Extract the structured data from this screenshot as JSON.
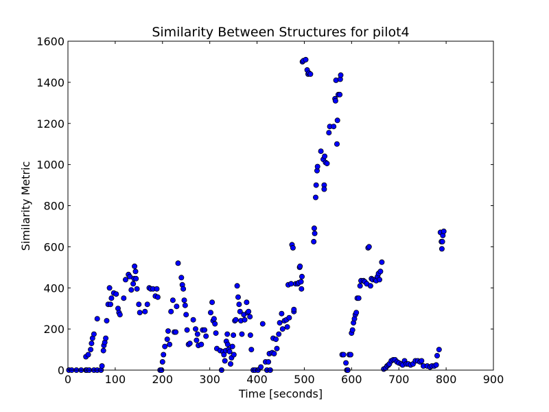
{
  "chart_data": {
    "type": "scatter",
    "title": "Similarity Between Structures for pilot4",
    "xlabel": "Time [seconds]",
    "ylabel": "Similarity Metric",
    "xlim": [
      0,
      900
    ],
    "ylim": [
      0,
      1600
    ],
    "x_ticks": [
      "0",
      "100",
      "200",
      "300",
      "400",
      "500",
      "600",
      "700",
      "800",
      "900"
    ],
    "y_ticks": [
      "0",
      "200",
      "400",
      "600",
      "800",
      "1000",
      "1200",
      "1400",
      "1600"
    ],
    "grid": false,
    "legend": "none",
    "marker_color": "#0000ff",
    "marker_edge_color": "#000000",
    "points": [
      [
        2,
        0
      ],
      [
        8,
        0
      ],
      [
        18,
        0
      ],
      [
        28,
        0
      ],
      [
        38,
        0
      ],
      [
        40,
        0
      ],
      [
        45,
        0
      ],
      [
        55,
        0
      ],
      [
        62,
        0
      ],
      [
        70,
        0
      ],
      [
        38,
        65
      ],
      [
        43,
        75
      ],
      [
        48,
        100
      ],
      [
        50,
        130
      ],
      [
        52,
        155
      ],
      [
        55,
        175
      ],
      [
        62,
        250
      ],
      [
        72,
        20
      ],
      [
        75,
        95
      ],
      [
        76,
        120
      ],
      [
        78,
        135
      ],
      [
        80,
        155
      ],
      [
        82,
        240
      ],
      [
        85,
        320
      ],
      [
        88,
        400
      ],
      [
        90,
        320
      ],
      [
        92,
        350
      ],
      [
        97,
        375
      ],
      [
        102,
        370
      ],
      [
        106,
        300
      ],
      [
        108,
        280
      ],
      [
        110,
        270
      ],
      [
        118,
        350
      ],
      [
        122,
        440
      ],
      [
        128,
        465
      ],
      [
        131,
        455
      ],
      [
        134,
        390
      ],
      [
        138,
        420
      ],
      [
        140,
        445
      ],
      [
        141,
        505
      ],
      [
        143,
        480
      ],
      [
        144,
        445
      ],
      [
        146,
        395
      ],
      [
        150,
        320
      ],
      [
        152,
        280
      ],
      [
        163,
        285
      ],
      [
        168,
        320
      ],
      [
        172,
        400
      ],
      [
        175,
        395
      ],
      [
        180,
        395
      ],
      [
        185,
        360
      ],
      [
        188,
        395
      ],
      [
        190,
        355
      ],
      [
        195,
        0
      ],
      [
        198,
        0
      ],
      [
        200,
        40
      ],
      [
        202,
        75
      ],
      [
        205,
        115
      ],
      [
        210,
        150
      ],
      [
        212,
        190
      ],
      [
        215,
        125
      ],
      [
        218,
        285
      ],
      [
        222,
        340
      ],
      [
        225,
        185
      ],
      [
        228,
        185
      ],
      [
        230,
        310
      ],
      [
        233,
        520
      ],
      [
        240,
        450
      ],
      [
        242,
        415
      ],
      [
        244,
        395
      ],
      [
        246,
        340
      ],
      [
        248,
        315
      ],
      [
        250,
        270
      ],
      [
        252,
        195
      ],
      [
        255,
        125
      ],
      [
        258,
        130
      ],
      [
        265,
        245
      ],
      [
        270,
        200
      ],
      [
        272,
        145
      ],
      [
        274,
        175
      ],
      [
        276,
        120
      ],
      [
        282,
        125
      ],
      [
        285,
        195
      ],
      [
        289,
        195
      ],
      [
        292,
        165
      ],
      [
        302,
        280
      ],
      [
        305,
        330
      ],
      [
        307,
        240
      ],
      [
        309,
        250
      ],
      [
        311,
        225
      ],
      [
        313,
        180
      ],
      [
        315,
        105
      ],
      [
        322,
        95
      ],
      [
        325,
        0
      ],
      [
        328,
        90
      ],
      [
        330,
        75
      ],
      [
        332,
        45
      ],
      [
        334,
        95
      ],
      [
        335,
        140
      ],
      [
        337,
        175
      ],
      [
        338,
        125
      ],
      [
        340,
        100
      ],
      [
        342,
        90
      ],
      [
        344,
        30
      ],
      [
        346,
        60
      ],
      [
        348,
        115
      ],
      [
        350,
        170
      ],
      [
        351,
        75
      ],
      [
        353,
        240
      ],
      [
        355,
        245
      ],
      [
        358,
        410
      ],
      [
        360,
        355
      ],
      [
        362,
        320
      ],
      [
        364,
        285
      ],
      [
        366,
        240
      ],
      [
        368,
        175
      ],
      [
        372,
        270
      ],
      [
        374,
        245
      ],
      [
        378,
        330
      ],
      [
        380,
        280
      ],
      [
        382,
        285
      ],
      [
        385,
        260
      ],
      [
        386,
        170
      ],
      [
        388,
        100
      ],
      [
        392,
        0
      ],
      [
        396,
        0
      ],
      [
        402,
        0
      ],
      [
        408,
        15
      ],
      [
        412,
        225
      ],
      [
        418,
        40
      ],
      [
        421,
        0
      ],
      [
        424,
        40
      ],
      [
        426,
        80
      ],
      [
        428,
        0
      ],
      [
        432,
        85
      ],
      [
        434,
        155
      ],
      [
        436,
        80
      ],
      [
        440,
        150
      ],
      [
        442,
        105
      ],
      [
        446,
        175
      ],
      [
        448,
        230
      ],
      [
        452,
        275
      ],
      [
        454,
        200
      ],
      [
        458,
        240
      ],
      [
        462,
        245
      ],
      [
        464,
        210
      ],
      [
        466,
        415
      ],
      [
        468,
        255
      ],
      [
        472,
        420
      ],
      [
        474,
        610
      ],
      [
        476,
        595
      ],
      [
        478,
        285
      ],
      [
        478,
        295
      ],
      [
        482,
        420
      ],
      [
        486,
        420
      ],
      [
        488,
        425
      ],
      [
        490,
        500
      ],
      [
        491,
        505
      ],
      [
        493,
        430
      ],
      [
        494,
        395
      ],
      [
        495,
        455
      ],
      [
        496,
        1500
      ],
      [
        498,
        1505
      ],
      [
        503,
        1510
      ],
      [
        506,
        1460
      ],
      [
        508,
        1440
      ],
      [
        510,
        1445
      ],
      [
        513,
        1440
      ],
      [
        520,
        625
      ],
      [
        521,
        690
      ],
      [
        522,
        665
      ],
      [
        524,
        840
      ],
      [
        525,
        900
      ],
      [
        527,
        970
      ],
      [
        528,
        990
      ],
      [
        535,
        1065
      ],
      [
        540,
        1025
      ],
      [
        542,
        900
      ],
      [
        542,
        880
      ],
      [
        543,
        1040
      ],
      [
        545,
        1010
      ],
      [
        548,
        1005
      ],
      [
        552,
        1155
      ],
      [
        554,
        1185
      ],
      [
        562,
        1185
      ],
      [
        565,
        1320
      ],
      [
        566,
        1310
      ],
      [
        567,
        1410
      ],
      [
        569,
        1100
      ],
      [
        570,
        1215
      ],
      [
        572,
        1340
      ],
      [
        575,
        1340
      ],
      [
        576,
        1415
      ],
      [
        577,
        1435
      ],
      [
        580,
        75
      ],
      [
        583,
        75
      ],
      [
        588,
        35
      ],
      [
        590,
        0
      ],
      [
        592,
        0
      ],
      [
        595,
        75
      ],
      [
        598,
        75
      ],
      [
        600,
        180
      ],
      [
        602,
        195
      ],
      [
        604,
        230
      ],
      [
        606,
        250
      ],
      [
        608,
        270
      ],
      [
        610,
        280
      ],
      [
        612,
        350
      ],
      [
        615,
        350
      ],
      [
        618,
        410
      ],
      [
        620,
        435
      ],
      [
        625,
        435
      ],
      [
        628,
        430
      ],
      [
        632,
        420
      ],
      [
        635,
        595
      ],
      [
        637,
        600
      ],
      [
        640,
        410
      ],
      [
        642,
        445
      ],
      [
        645,
        440
      ],
      [
        650,
        440
      ],
      [
        652,
        435
      ],
      [
        655,
        455
      ],
      [
        657,
        470
      ],
      [
        659,
        440
      ],
      [
        661,
        480
      ],
      [
        664,
        525
      ],
      [
        668,
        5
      ],
      [
        672,
        10
      ],
      [
        675,
        20
      ],
      [
        678,
        25
      ],
      [
        680,
        30
      ],
      [
        684,
        45
      ],
      [
        688,
        50
      ],
      [
        692,
        50
      ],
      [
        696,
        40
      ],
      [
        700,
        35
      ],
      [
        705,
        30
      ],
      [
        708,
        25
      ],
      [
        712,
        45
      ],
      [
        716,
        30
      ],
      [
        720,
        30
      ],
      [
        725,
        25
      ],
      [
        730,
        30
      ],
      [
        735,
        45
      ],
      [
        740,
        45
      ],
      [
        745,
        40
      ],
      [
        748,
        45
      ],
      [
        752,
        20
      ],
      [
        760,
        20
      ],
      [
        766,
        15
      ],
      [
        770,
        20
      ],
      [
        775,
        20
      ],
      [
        779,
        25
      ],
      [
        781,
        70
      ],
      [
        785,
        100
      ],
      [
        788,
        670
      ],
      [
        790,
        625
      ],
      [
        791,
        590
      ],
      [
        792,
        625
      ],
      [
        793,
        655
      ],
      [
        795,
        675
      ]
    ]
  }
}
